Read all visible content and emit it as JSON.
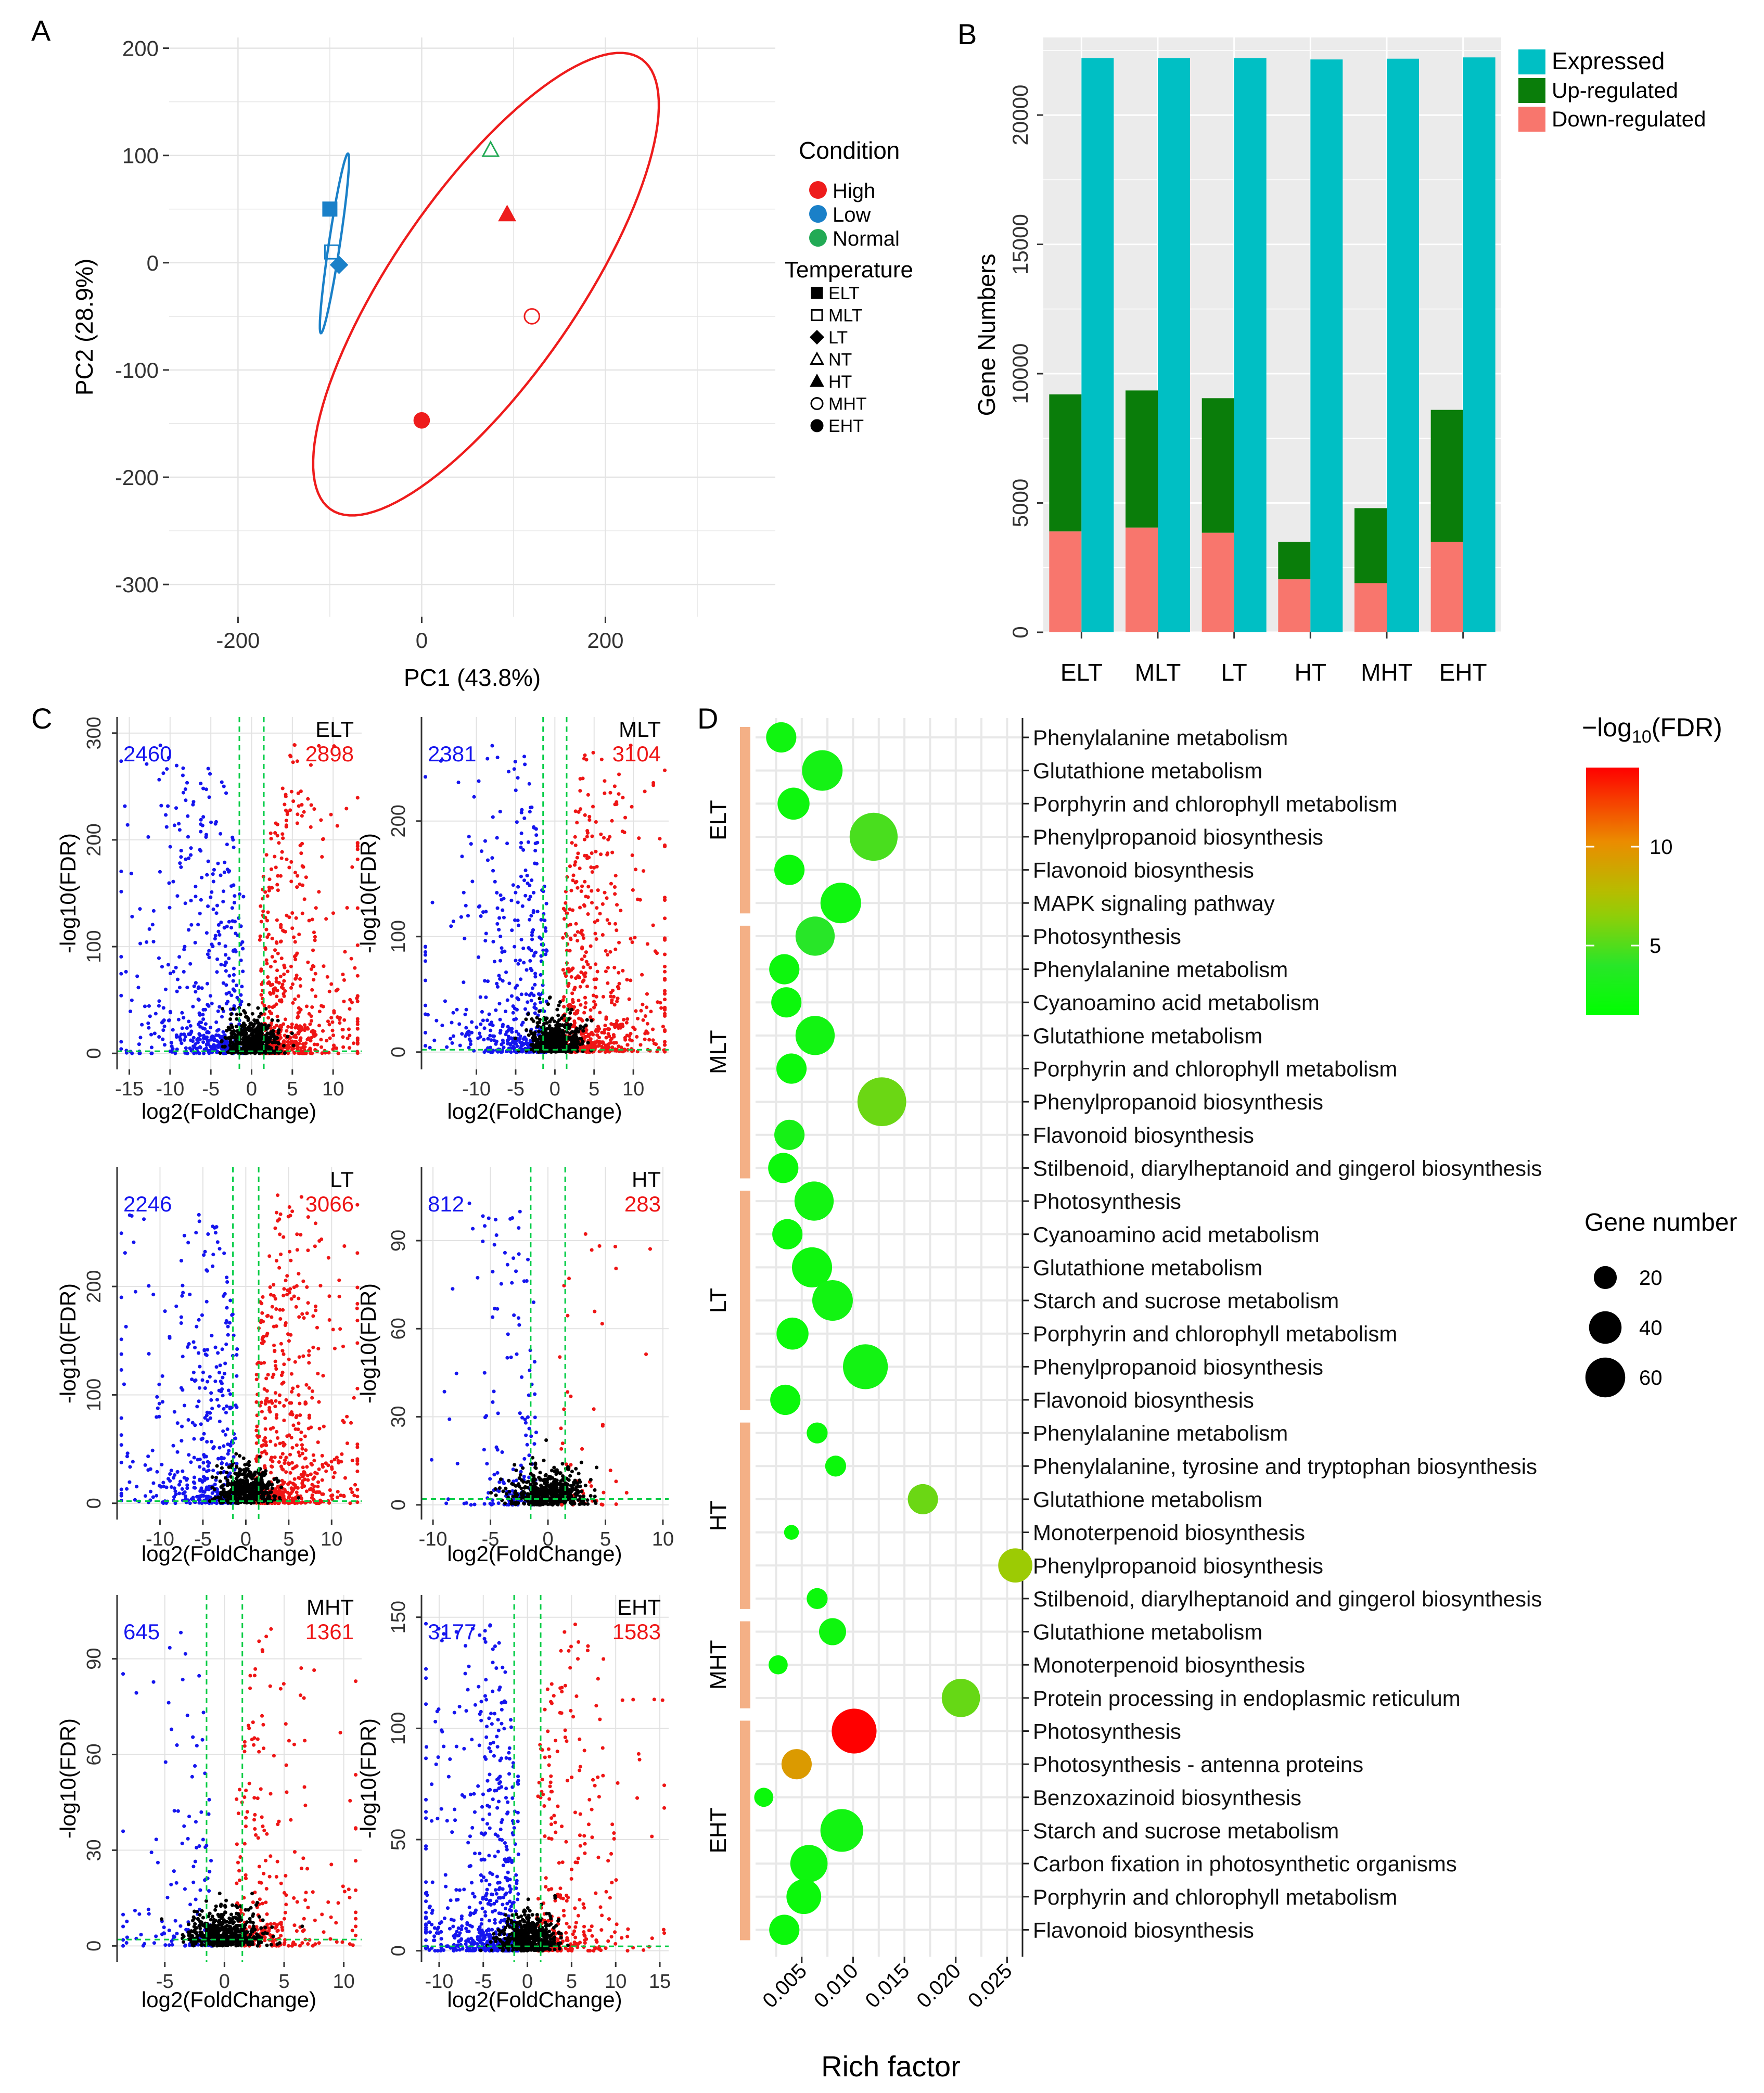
{
  "panel_labels": {
    "a": "A",
    "b": "B",
    "c": "C",
    "d": "D"
  },
  "colors": {
    "high": "#ee1c1c",
    "low": "#1a80c8",
    "normal": "#22aa55",
    "expressed": "#00bfc4",
    "up": "#0a7d0a",
    "down": "#f8766d",
    "volcano_down": "#1515ee",
    "volcano_up": "#ee1515",
    "volcano_ns": "#000000",
    "threshold": "#00cc44",
    "strip": "#f4b086",
    "panel_bg": "#ebebeb"
  },
  "chart_data": [
    {
      "id": "A",
      "type": "scatter",
      "xlabel": "PC1 (43.8%)",
      "ylabel": "PC2 (28.9%)",
      "xlim": [
        -275,
        385
      ],
      "ylim": [
        -330,
        210
      ],
      "xticks": [
        -200,
        0,
        200
      ],
      "yticks": [
        -300,
        -200,
        -100,
        0,
        100,
        200
      ],
      "xtick_labels": [
        "-200",
        "0",
        "200"
      ],
      "ytick_labels": [
        "-300",
        "-200",
        "-100",
        "0",
        "100",
        "200"
      ],
      "points": [
        {
          "name": "ELT",
          "condition": "Low",
          "x": -100,
          "y": 50
        },
        {
          "name": "MLT",
          "condition": "Low",
          "x": -98,
          "y": 10
        },
        {
          "name": "LT",
          "condition": "Low",
          "x": -90,
          "y": -2
        },
        {
          "name": "NT",
          "condition": "Normal",
          "x": 75,
          "y": 105
        },
        {
          "name": "HT",
          "condition": "High",
          "x": 93,
          "y": 45
        },
        {
          "name": "MHT",
          "condition": "High",
          "x": 120,
          "y": -50
        },
        {
          "name": "EHT",
          "condition": "High",
          "x": 0,
          "y": -147
        }
      ],
      "ellipses": [
        {
          "condition": "High",
          "cx": 70,
          "cy": -20,
          "a": 270,
          "b": 95,
          "angle_deg": 50
        },
        {
          "condition": "Low",
          "cx": -95,
          "cy": 18,
          "a": 85,
          "b": 6,
          "angle_deg": 80
        }
      ],
      "legend": {
        "condition_title": "Condition",
        "conditions": [
          "High",
          "Low",
          "Normal"
        ],
        "temperature_title": "Temperature",
        "temperatures": [
          {
            "label": "ELT",
            "shape": "square-filled"
          },
          {
            "label": "MLT",
            "shape": "square-open"
          },
          {
            "label": "LT",
            "shape": "diamond-filled"
          },
          {
            "label": "NT",
            "shape": "triangle-open"
          },
          {
            "label": "HT",
            "shape": "triangle-filled"
          },
          {
            "label": "MHT",
            "shape": "circle-open"
          },
          {
            "label": "EHT",
            "shape": "circle-filled"
          }
        ]
      }
    },
    {
      "id": "B",
      "type": "bar",
      "ylabel": "Gene Numbers",
      "categories": [
        "ELT",
        "MLT",
        "LT",
        "HT",
        "MHT",
        "EHT"
      ],
      "ylim": [
        0,
        23000
      ],
      "yticks": [
        0,
        5000,
        10000,
        15000,
        20000
      ],
      "ytick_labels": [
        "0",
        "5000",
        "10000",
        "15000",
        "20000"
      ],
      "series": [
        {
          "name": "Expressed",
          "values": [
            22200,
            22200,
            22200,
            22150,
            22180,
            22230
          ]
        },
        {
          "name": "Up-regulated",
          "values": [
            5300,
            5300,
            5200,
            1450,
            2900,
            5100
          ]
        },
        {
          "name": "Down-regulated",
          "values": [
            3900,
            4050,
            3850,
            2050,
            1900,
            3500
          ]
        }
      ]
    },
    {
      "id": "C",
      "type": "scatter",
      "subtype": "volcano",
      "xlabel": "log2(FoldChange)",
      "ylabel": "-log10(FDR)",
      "panels": [
        {
          "name": "ELT",
          "down": "2460",
          "up": "2898",
          "xlim": [
            -16.5,
            13.5
          ],
          "ylim": [
            -15,
            315
          ],
          "xticks": [
            -15,
            -10,
            -5,
            0,
            5,
            10
          ],
          "yticks": [
            0,
            100,
            200,
            300
          ],
          "ytick_labels": [
            "0",
            "100",
            "200",
            "300"
          ],
          "ythr": 2,
          "spread": 6
        },
        {
          "name": "MLT",
          "down": "2381",
          "up": "3104",
          "xlim": [
            -17,
            14.5
          ],
          "ylim": [
            -15,
            290
          ],
          "xticks": [
            -10,
            -5,
            0,
            5,
            10
          ],
          "yticks": [
            0,
            100,
            200
          ],
          "ytick_labels": [
            "0",
            "100",
            "200"
          ],
          "ythr": 2,
          "spread": 6
        },
        {
          "name": "LT",
          "down": "2246",
          "up": "3066",
          "xlim": [
            -15,
            13.5
          ],
          "ylim": [
            -15,
            310
          ],
          "xticks": [
            -10,
            -5,
            0,
            5,
            10
          ],
          "yticks": [
            0,
            100,
            200
          ],
          "ytick_labels": [
            "0",
            "100",
            "200"
          ],
          "ythr": 2,
          "spread": 5.5
        },
        {
          "name": "HT",
          "down": "812",
          "up": "283",
          "xlim": [
            -11,
            10.5
          ],
          "ylim": [
            -5,
            115
          ],
          "xticks": [
            -10,
            -5,
            0,
            5,
            10
          ],
          "yticks": [
            0,
            30,
            60,
            90
          ],
          "ytick_labels": [
            "0",
            "30",
            "60",
            "90"
          ],
          "ythr": 2,
          "spread": 3
        },
        {
          "name": "MHT",
          "down": "645",
          "up": "1361",
          "xlim": [
            -9,
            11.5
          ],
          "ylim": [
            -5,
            110
          ],
          "xticks": [
            -5,
            0,
            5,
            10
          ],
          "yticks": [
            0,
            30,
            60,
            90
          ],
          "ytick_labels": [
            "0",
            "30",
            "60",
            "90"
          ],
          "ythr": 2,
          "spread": 4
        },
        {
          "name": "EHT",
          "down": "3177",
          "up": "1583",
          "xlim": [
            -12,
            16
          ],
          "ylim": [
            -5,
            160
          ],
          "xticks": [
            -10,
            -5,
            0,
            5,
            10,
            15
          ],
          "yticks": [
            0,
            50,
            100,
            150
          ],
          "ytick_labels": [
            "0",
            "50",
            "100",
            "150"
          ],
          "ythr": 2,
          "spread": 5
        }
      ]
    },
    {
      "id": "D",
      "type": "scatter",
      "subtype": "bubble",
      "xlabel": "Rich factor",
      "xlim": [
        0.0005,
        0.0265
      ],
      "xticks": [
        0.005,
        0.01,
        0.015,
        0.02,
        0.025
      ],
      "xtick_labels": [
        "0.005",
        "0.010",
        "0.015",
        "0.020",
        "0.025"
      ],
      "color_title": "−log",
      "color_title_sub": "10",
      "color_title_end": "(FDR)",
      "color_range": [
        1.5,
        14
      ],
      "color_ticks": [
        5,
        10
      ],
      "color_tick_labels": [
        "5",
        "10"
      ],
      "size_title": "Gene number",
      "size_legend": [
        {
          "value": 20,
          "label": "20"
        },
        {
          "value": 40,
          "label": "40"
        },
        {
          "value": 60,
          "label": "60"
        }
      ],
      "groups": [
        {
          "label": "ELT",
          "start": 0,
          "end": 5
        },
        {
          "label": "MLT",
          "start": 6,
          "end": 13
        },
        {
          "label": "LT",
          "start": 14,
          "end": 20
        },
        {
          "label": "HT",
          "start": 21,
          "end": 26
        },
        {
          "label": "MHT",
          "start": 27,
          "end": 29
        },
        {
          "label": "EHT",
          "start": 30,
          "end": 36
        }
      ],
      "terms": [
        {
          "group": "ELT",
          "term": "Phenylalanine metabolism",
          "rich": 0.003,
          "fdr": 2.5,
          "genes": 25
        },
        {
          "group": "ELT",
          "term": "Glutathione metabolism",
          "rich": 0.007,
          "fdr": 2.8,
          "genes": 45
        },
        {
          "group": "ELT",
          "term": "Porphyrin and chlorophyll metabolism",
          "rich": 0.0042,
          "fdr": 2.4,
          "genes": 28
        },
        {
          "group": "ELT",
          "term": "Phenylpropanoid biosynthesis",
          "rich": 0.012,
          "fdr": 4.8,
          "genes": 63
        },
        {
          "group": "ELT",
          "term": "Flavonoid biosynthesis",
          "rich": 0.0038,
          "fdr": 2.2,
          "genes": 25
        },
        {
          "group": "ELT",
          "term": "MAPK signaling pathway",
          "rich": 0.0088,
          "fdr": 2.5,
          "genes": 45
        },
        {
          "group": "MLT",
          "term": "Photosynthesis",
          "rich": 0.0063,
          "fdr": 4.0,
          "genes": 42
        },
        {
          "group": "MLT",
          "term": "Phenylalanine metabolism",
          "rich": 0.0033,
          "fdr": 2.3,
          "genes": 25
        },
        {
          "group": "MLT",
          "term": "Cyanoamino acid metabolism",
          "rich": 0.0035,
          "fdr": 2.2,
          "genes": 25
        },
        {
          "group": "MLT",
          "term": "Glutathione metabolism",
          "rich": 0.0063,
          "fdr": 2.6,
          "genes": 42
        },
        {
          "group": "MLT",
          "term": "Porphyrin and chlorophyll metabolism",
          "rich": 0.004,
          "fdr": 2.2,
          "genes": 25
        },
        {
          "group": "MLT",
          "term": "Phenylpropanoid biosynthesis",
          "rich": 0.0128,
          "fdr": 5.6,
          "genes": 65
        },
        {
          "group": "MLT",
          "term": "Flavonoid biosynthesis",
          "rich": 0.0038,
          "fdr": 2.9,
          "genes": 25
        },
        {
          "group": "MLT",
          "term": "Stilbenoid, diarylheptanoid and gingerol biosynthesis",
          "rich": 0.0032,
          "fdr": 2.2,
          "genes": 25
        },
        {
          "group": "LT",
          "term": "Photosynthesis",
          "rich": 0.0062,
          "fdr": 2.6,
          "genes": 42
        },
        {
          "group": "LT",
          "term": "Cyanoamino acid metabolism",
          "rich": 0.0036,
          "fdr": 2.2,
          "genes": 25
        },
        {
          "group": "LT",
          "term": "Glutathione metabolism",
          "rich": 0.006,
          "fdr": 2.4,
          "genes": 44
        },
        {
          "group": "LT",
          "term": "Starch and sucrose metabolism",
          "rich": 0.008,
          "fdr": 2.6,
          "genes": 45
        },
        {
          "group": "LT",
          "term": "Porphyrin and chlorophyll metabolism",
          "rich": 0.0041,
          "fdr": 2.2,
          "genes": 28
        },
        {
          "group": "LT",
          "term": "Phenylpropanoid biosynthesis",
          "rich": 0.0112,
          "fdr": 2.7,
          "genes": 55
        },
        {
          "group": "LT",
          "term": "Flavonoid biosynthesis",
          "rich": 0.0034,
          "fdr": 2.2,
          "genes": 25
        },
        {
          "group": "HT",
          "term": "Phenylalanine metabolism",
          "rich": 0.0065,
          "fdr": 2.2,
          "genes": 12
        },
        {
          "group": "HT",
          "term": "Phenylalanine, tyrosine and tryptophan biosynthesis",
          "rich": 0.0083,
          "fdr": 2.2,
          "genes": 12
        },
        {
          "group": "HT",
          "term": "Glutathione metabolism",
          "rich": 0.0168,
          "fdr": 5.6,
          "genes": 25
        },
        {
          "group": "HT",
          "term": "Monoterpenoid biosynthesis",
          "rich": 0.004,
          "fdr": 2.0,
          "genes": 6
        },
        {
          "group": "HT",
          "term": "Phenylpropanoid biosynthesis",
          "rich": 0.0258,
          "fdr": 6.8,
          "genes": 32
        },
        {
          "group": "HT",
          "term": "Stilbenoid, diarylheptanoid and gingerol biosynthesis",
          "rich": 0.0065,
          "fdr": 2.2,
          "genes": 12
        },
        {
          "group": "MHT",
          "term": "Glutathione metabolism",
          "rich": 0.008,
          "fdr": 2.4,
          "genes": 20
        },
        {
          "group": "MHT",
          "term": "Monoterpenoid biosynthesis",
          "rich": 0.0027,
          "fdr": 2.0,
          "genes": 10
        },
        {
          "group": "MHT",
          "term": "Protein processing in endoplasmic reticulum",
          "rich": 0.0205,
          "fdr": 5.5,
          "genes": 40
        },
        {
          "group": "EHT",
          "term": "Photosynthesis",
          "rich": 0.0101,
          "fdr": 14.0,
          "genes": 55
        },
        {
          "group": "EHT",
          "term": "Photosynthesis - antenna proteins",
          "rich": 0.0045,
          "fdr": 9.5,
          "genes": 25
        },
        {
          "group": "EHT",
          "term": "Benzoxazinoid biosynthesis",
          "rich": 0.0013,
          "fdr": 2.2,
          "genes": 10
        },
        {
          "group": "EHT",
          "term": "Starch and sucrose metabolism",
          "rich": 0.0089,
          "fdr": 2.6,
          "genes": 50
        },
        {
          "group": "EHT",
          "term": "Carbon fixation in photosynthetic organisms",
          "rich": 0.0057,
          "fdr": 2.4,
          "genes": 38
        },
        {
          "group": "EHT",
          "term": "Porphyrin and chlorophyll metabolism",
          "rich": 0.0052,
          "fdr": 2.2,
          "genes": 33
        },
        {
          "group": "EHT",
          "term": "Flavonoid biosynthesis",
          "rich": 0.0033,
          "fdr": 2.2,
          "genes": 25
        }
      ]
    }
  ]
}
